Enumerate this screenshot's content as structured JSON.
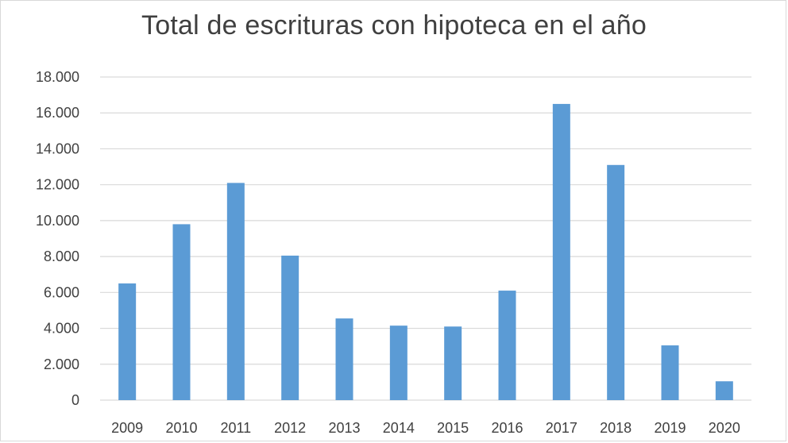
{
  "chart_data": {
    "type": "bar",
    "title": "Total de escrituras con hipoteca en el año",
    "xlabel": "",
    "ylabel": "",
    "categories": [
      "2009",
      "2010",
      "2011",
      "2012",
      "2013",
      "2014",
      "2015",
      "2016",
      "2017",
      "2018",
      "2019",
      "2020"
    ],
    "values": [
      6500,
      9800,
      12100,
      8050,
      4550,
      4150,
      4100,
      6100,
      16500,
      13100,
      3050,
      1050
    ],
    "ylim": [
      0,
      18000
    ],
    "yticks": [
      0,
      2000,
      4000,
      6000,
      8000,
      10000,
      12000,
      14000,
      16000,
      18000
    ],
    "ytick_labels": [
      "0",
      "2.000",
      "4.000",
      "6.000",
      "8.000",
      "10.000",
      "12.000",
      "14.000",
      "16.000",
      "18.000"
    ],
    "grid": true,
    "legend": "none",
    "colors": {
      "bar": "#5b9bd5",
      "grid": "#d9d9d9",
      "text": "#404040"
    }
  }
}
